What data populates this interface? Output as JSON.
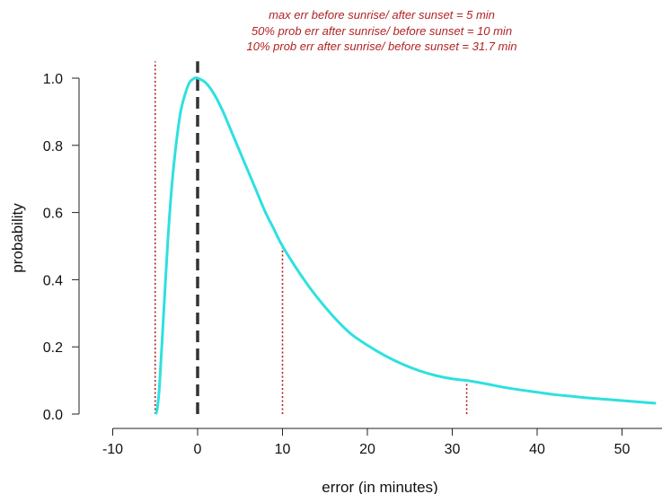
{
  "chart_data": {
    "type": "line",
    "xlabel": "error (in minutes)",
    "ylabel": "probability",
    "xlim": [
      -10,
      54
    ],
    "ylim": [
      0,
      1.05
    ],
    "x_ticks": [
      -10,
      0,
      10,
      20,
      30,
      40,
      50
    ],
    "y_ticks": [
      0.0,
      0.2,
      0.4,
      0.6,
      0.8,
      1.0
    ],
    "x_tick_labels": [
      "-10",
      "0",
      "10",
      "20",
      "30",
      "40",
      "50"
    ],
    "y_tick_labels": [
      "0.0",
      "0.2",
      "0.4",
      "0.6",
      "0.8",
      "1.0"
    ],
    "annotations": [
      "max err before sunrise/ after sunset = 5 min",
      "50% prob err after sunrise/ before sunset = 10 min",
      "10% prob err after sunrise/ before sunset = 31.7 min"
    ],
    "series": [
      {
        "color": "#2ee0e0",
        "x": [
          -5,
          -4.8,
          -4.5,
          -4,
          -3.5,
          -3,
          -2.5,
          -2,
          -1.5,
          -1,
          -0.5,
          0,
          1,
          2,
          3,
          4,
          5,
          6,
          7,
          8,
          9,
          10,
          12,
          14,
          16,
          18,
          20,
          22,
          24,
          26,
          28,
          30,
          31.7,
          34,
          36,
          38,
          40,
          42,
          44,
          46,
          48,
          50,
          52,
          54
        ],
        "y": [
          0.0,
          0.01,
          0.08,
          0.3,
          0.52,
          0.69,
          0.81,
          0.9,
          0.95,
          0.985,
          0.998,
          1.0,
          0.985,
          0.95,
          0.9,
          0.84,
          0.78,
          0.72,
          0.66,
          0.6,
          0.55,
          0.5,
          0.42,
          0.35,
          0.29,
          0.24,
          0.205,
          0.175,
          0.15,
          0.13,
          0.115,
          0.105,
          0.1,
          0.09,
          0.08,
          0.072,
          0.065,
          0.058,
          0.053,
          0.048,
          0.044,
          0.04,
          0.036,
          0.032
        ]
      }
    ],
    "reference_lines": [
      {
        "x": 0,
        "y_top": 1.05,
        "style": "dashed-thick",
        "color": "#333333"
      },
      {
        "x": -5,
        "y_top": 1.05,
        "style": "dotted",
        "color": "#b22222"
      },
      {
        "x": 10,
        "y_top": 0.5,
        "style": "dotted",
        "color": "#b22222"
      },
      {
        "x": 31.7,
        "y_top": 0.1,
        "style": "dotted",
        "color": "#b22222"
      }
    ],
    "colors": {
      "annotation": "#b22222",
      "axis": "#222222"
    },
    "grid": false,
    "legend": "none"
  }
}
